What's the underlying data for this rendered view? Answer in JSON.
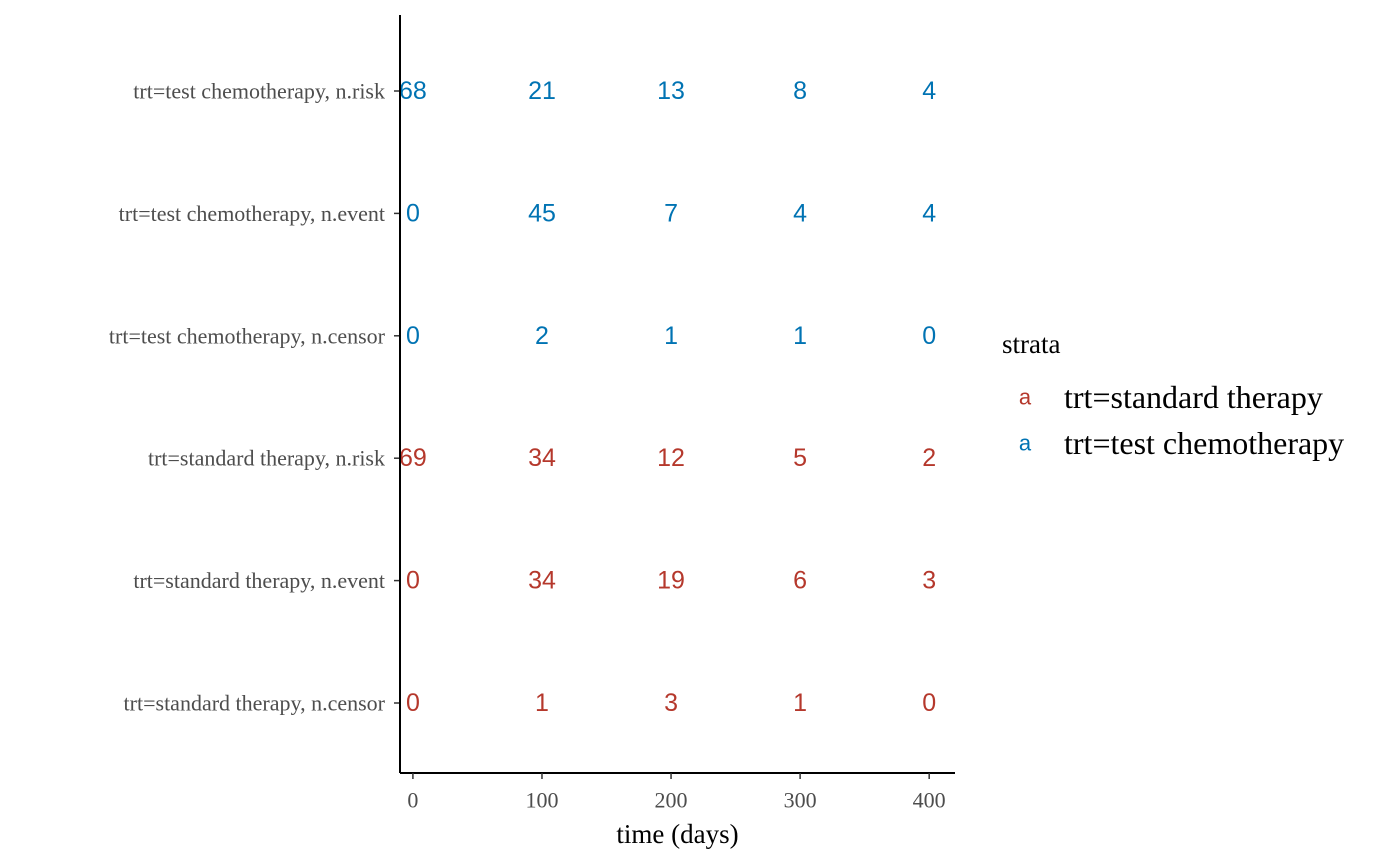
{
  "chart_data": {
    "type": "table",
    "xlabel": "time (days)",
    "ylabel": "",
    "xlim": [
      -10,
      420
    ],
    "x_ticks": [
      0,
      100,
      200,
      300,
      400
    ],
    "x_tick_labels": [
      "0",
      "100",
      "200",
      "300",
      "400"
    ],
    "grid": false,
    "legend_placement": "right",
    "legend": {
      "title": "strata",
      "key_glyph": "a",
      "entries": [
        {
          "label": "trt=standard therapy",
          "color": "#B5382C"
        },
        {
          "label": "trt=test chemotherapy",
          "color": "#0073B3"
        }
      ]
    },
    "rows": [
      {
        "label": "trt=test chemotherapy, n.risk",
        "stratum": "trt=test chemotherapy",
        "color": "#0073B3",
        "values": [
          68,
          21,
          13,
          8,
          4
        ]
      },
      {
        "label": "trt=test chemotherapy, n.event",
        "stratum": "trt=test chemotherapy",
        "color": "#0073B3",
        "values": [
          0,
          45,
          7,
          4,
          4
        ]
      },
      {
        "label": "trt=test chemotherapy, n.censor",
        "stratum": "trt=test chemotherapy",
        "color": "#0073B3",
        "values": [
          0,
          2,
          1,
          1,
          0
        ]
      },
      {
        "label": "trt=standard therapy, n.risk",
        "stratum": "trt=standard therapy",
        "color": "#B5382C",
        "values": [
          69,
          34,
          12,
          5,
          2
        ]
      },
      {
        "label": "trt=standard therapy, n.event",
        "stratum": "trt=standard therapy",
        "color": "#B5382C",
        "values": [
          0,
          34,
          19,
          6,
          3
        ]
      },
      {
        "label": "trt=standard therapy, n.censor",
        "stratum": "trt=standard therapy",
        "color": "#B5382C",
        "values": [
          0,
          1,
          3,
          1,
          0
        ]
      }
    ]
  }
}
